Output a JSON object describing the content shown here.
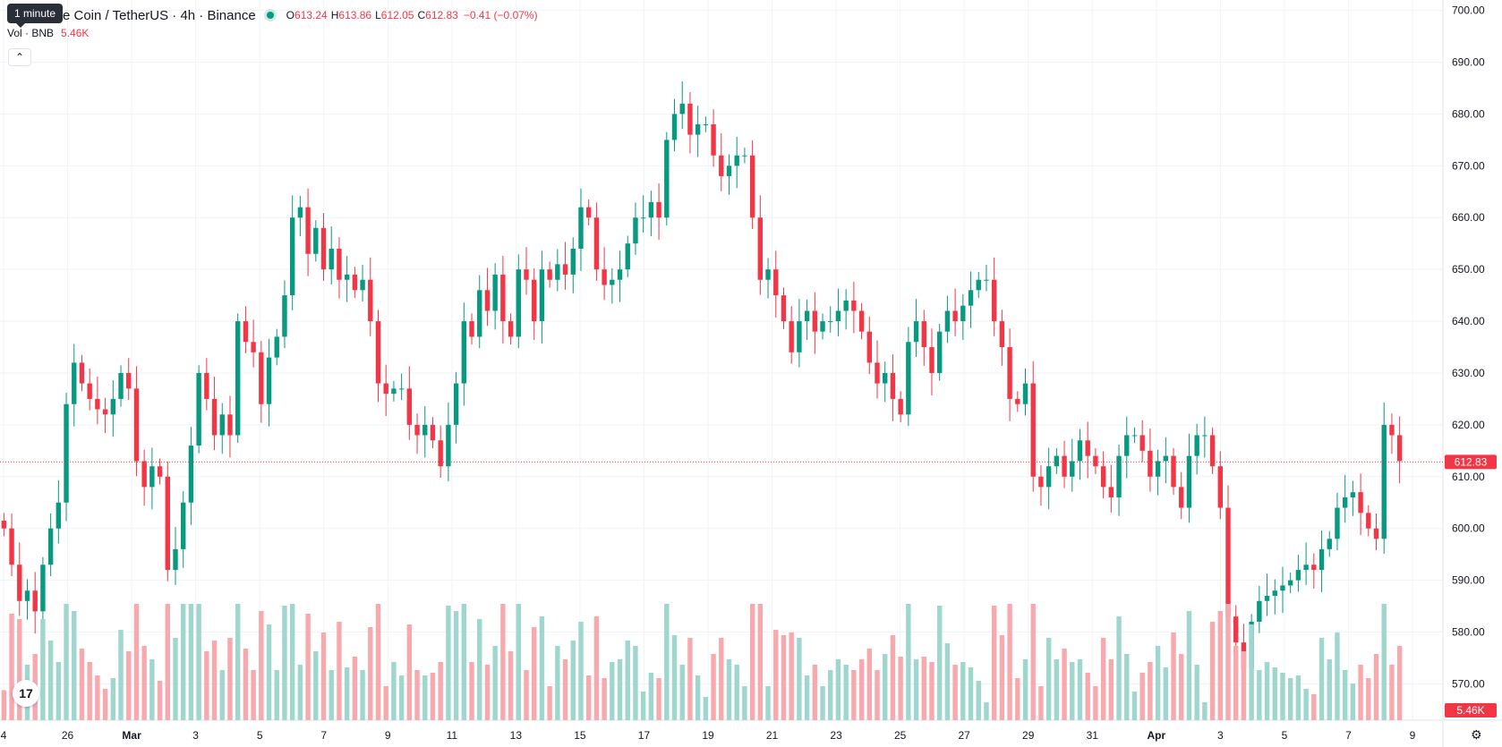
{
  "header": {
    "symbol_title": "e Coin / TetherUS · 4h · Binance",
    "tooltip": "1 minute",
    "ohlc": {
      "o_label": "O",
      "o": "613.24",
      "h_label": "H",
      "h": "613.86",
      "l_label": "L",
      "l": "612.05",
      "c_label": "C",
      "c": "612.83",
      "change": "−0.41 (−0.07%)"
    },
    "volume_label": "Vol · BNB",
    "volume_value": "5.46K",
    "collapse_icon": "chevron-up-icon"
  },
  "price_badge": "612.83",
  "volume_badge": "5.46K",
  "colors": {
    "up": "#089981",
    "down": "#f23645",
    "up_vol": "#9fd6cd",
    "down_vol": "#f7a9ae"
  },
  "chart_data": {
    "type": "candlestick",
    "y_axis": {
      "min": 563,
      "max": 702,
      "ticks": [
        "700.00",
        "690.00",
        "680.00",
        "670.00",
        "660.00",
        "650.00",
        "640.00",
        "630.00",
        "620.00",
        "610.00",
        "600.00",
        "590.00",
        "580.00",
        "570.00"
      ]
    },
    "x_ticks": [
      "4",
      "26",
      "Mar",
      "3",
      "5",
      "7",
      "9",
      "11",
      "13",
      "15",
      "17",
      "19",
      "21",
      "23",
      "25",
      "27",
      "29",
      "31",
      "Apr",
      "3",
      "5",
      "7",
      "9"
    ],
    "last_price": 612.83,
    "candles_close": [
      600,
      593,
      586,
      588,
      584,
      593,
      600,
      605,
      624,
      632,
      628,
      625,
      623,
      622,
      625,
      630,
      627,
      613,
      608,
      612,
      610,
      592,
      596,
      605,
      616,
      630,
      625,
      618,
      622,
      618,
      640,
      636,
      634,
      624,
      633,
      637,
      645,
      660,
      662,
      653,
      658,
      650,
      654,
      648,
      649,
      646,
      648,
      640,
      628,
      626,
      627,
      627,
      620,
      618,
      620,
      617,
      612,
      620,
      628,
      640,
      637,
      646,
      642,
      649,
      640,
      637,
      650,
      648,
      640,
      650,
      648,
      651,
      649,
      654,
      662,
      660,
      650,
      647,
      648,
      650,
      655,
      660,
      660,
      663,
      660,
      675,
      680,
      682,
      676,
      678,
      678,
      672,
      668,
      670,
      672,
      672,
      660,
      648,
      650,
      645,
      640,
      634,
      640,
      642,
      638,
      640,
      640,
      642,
      644,
      642,
      638,
      632,
      628,
      630,
      625,
      622,
      636,
      640,
      635,
      630,
      638,
      642,
      640,
      643,
      646,
      648,
      648,
      640,
      635,
      625,
      624,
      628,
      610,
      608,
      612,
      614,
      610,
      613,
      617,
      614,
      612,
      608,
      606,
      614,
      618,
      618,
      615,
      610,
      613,
      614,
      608,
      604,
      614,
      618,
      618,
      612,
      604,
      583,
      578,
      573,
      582,
      586,
      587,
      588,
      589,
      590,
      592,
      593,
      592,
      596,
      598,
      604,
      606,
      607,
      603,
      600,
      598,
      620,
      618,
      613
    ],
    "volume_scale": "relative"
  }
}
